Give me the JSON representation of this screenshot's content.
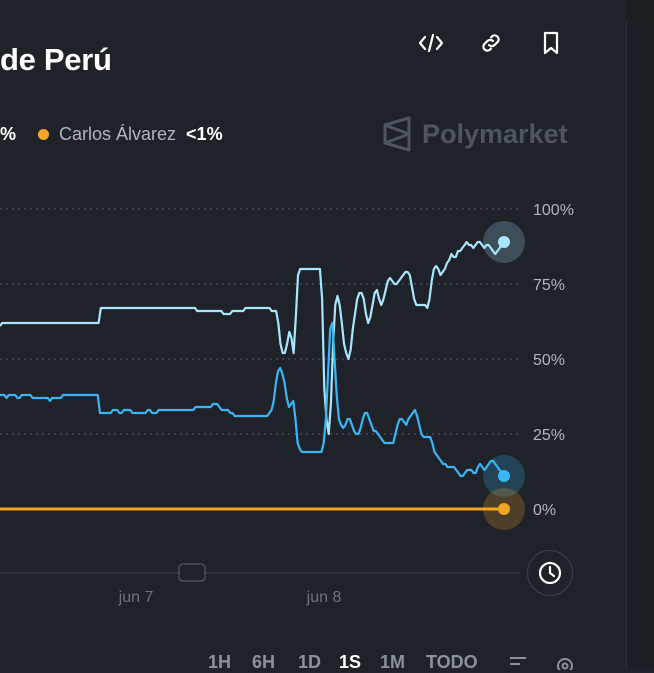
{
  "header": {
    "title": "de Perú"
  },
  "legend": [
    {
      "name": "",
      "pct": "%"
    },
    {
      "name": "Carlos Álvarez",
      "pct": "<1%",
      "color": "#f5a524"
    }
  ],
  "watermark": {
    "brand": "Polymarket"
  },
  "toolbar": {
    "embed_icon": "code-icon",
    "link_icon": "link-icon",
    "bookmark_icon": "bookmark-icon"
  },
  "range_tabs": [
    {
      "label": "1H",
      "active": false
    },
    {
      "label": "6H",
      "active": false
    },
    {
      "label": "1D",
      "active": false
    },
    {
      "label": "1S",
      "active": true
    },
    {
      "label": "1M",
      "active": false
    },
    {
      "label": "TODO",
      "active": false
    }
  ],
  "chart_data": {
    "type": "line",
    "y_ticks": [
      "100%",
      "75%",
      "50%",
      "25%",
      "0%"
    ],
    "ylim": [
      0,
      100
    ],
    "x_ticks": [
      "jun 7",
      "jun 8"
    ],
    "grid": true,
    "series": [
      {
        "color": "#a8e6ff",
        "end_value": 89,
        "values": [
          61,
          62,
          62,
          62,
          62,
          62,
          62,
          62,
          62,
          62,
          62,
          62,
          62,
          62,
          62,
          62,
          62,
          62,
          62,
          62,
          62,
          62,
          62,
          62,
          62,
          62,
          62,
          62,
          62,
          62,
          62,
          62,
          62,
          62,
          62,
          62,
          62,
          62,
          62,
          62,
          62,
          62,
          62,
          62,
          62,
          62,
          67,
          67,
          67,
          67,
          67,
          67,
          67,
          67,
          67,
          67,
          67,
          67,
          67,
          67,
          67,
          67,
          67,
          67,
          67,
          67,
          67,
          67,
          67,
          67,
          67,
          67,
          67,
          67,
          67,
          67,
          67,
          67,
          67,
          67,
          67,
          67,
          67,
          67,
          67,
          67,
          67,
          67,
          67,
          67,
          66,
          66,
          66,
          66,
          66,
          66,
          66,
          66,
          66,
          66,
          66,
          66,
          65,
          65,
          65,
          65,
          66,
          66,
          66,
          66,
          66,
          66,
          67,
          67,
          67,
          67,
          67,
          67,
          67,
          67,
          67,
          67,
          67,
          67,
          66,
          66,
          66,
          62,
          55,
          52,
          52,
          55,
          59,
          57,
          52,
          64,
          78,
          80,
          80,
          80,
          80,
          80,
          80,
          80,
          80,
          80,
          80,
          70,
          40,
          30,
          25,
          35,
          55,
          68,
          71,
          68,
          62,
          55,
          52,
          50,
          53,
          60,
          65,
          70,
          72,
          72,
          70,
          65,
          62,
          64,
          68,
          72,
          73,
          70,
          68,
          70,
          73,
          76,
          77,
          76,
          75,
          75,
          76,
          77,
          78,
          79,
          79,
          78,
          74,
          70,
          68,
          68,
          68,
          68,
          68,
          67,
          70,
          76,
          80,
          81,
          80,
          78,
          79,
          80,
          82,
          83,
          85,
          84,
          84,
          86,
          86,
          87,
          88,
          89,
          88,
          88,
          87,
          88,
          89,
          89,
          88,
          87,
          88,
          88,
          87,
          86,
          85,
          86,
          87,
          88,
          89
        ]
      },
      {
        "color": "#3bb5f5",
        "end_value": 11,
        "values": [
          38,
          38,
          38,
          37,
          38,
          38,
          38,
          38,
          37,
          37,
          38,
          38,
          38,
          38,
          38,
          37,
          37,
          37,
          37,
          37,
          37,
          37,
          37,
          36,
          37,
          37,
          37,
          37,
          37,
          38,
          38,
          38,
          38,
          38,
          38,
          38,
          38,
          38,
          38,
          38,
          38,
          38,
          38,
          38,
          38,
          38,
          32,
          32,
          32,
          32,
          32,
          32,
          33,
          33,
          33,
          32,
          32,
          33,
          33,
          33,
          33,
          32,
          32,
          32,
          32,
          32,
          32,
          32,
          33,
          33,
          32,
          32,
          32,
          33,
          33,
          33,
          33,
          33,
          33,
          33,
          33,
          33,
          33,
          33,
          33,
          33,
          33,
          33,
          33,
          33,
          34,
          34,
          34,
          34,
          34,
          34,
          34,
          34,
          35,
          35,
          35,
          34,
          33,
          33,
          33,
          33,
          32,
          32,
          31,
          31,
          31,
          31,
          31,
          31,
          31,
          31,
          31,
          31,
          31,
          31,
          31,
          31,
          31,
          31,
          32,
          33,
          36,
          42,
          46,
          47,
          45,
          42,
          37,
          34,
          35,
          36,
          30,
          22,
          20,
          19,
          19,
          19,
          19,
          19,
          19,
          19,
          19,
          19,
          19,
          22,
          30,
          45,
          60,
          62,
          50,
          38,
          30,
          28,
          27,
          28,
          30,
          30,
          28,
          26,
          25,
          25,
          27,
          30,
          32,
          32,
          30,
          28,
          26,
          26,
          25,
          24,
          23,
          22,
          22,
          22,
          22,
          22,
          25,
          28,
          30,
          30,
          29,
          28,
          30,
          31,
          32,
          33,
          31,
          28,
          25,
          24,
          24,
          24,
          24,
          22,
          19,
          18,
          17,
          16,
          15,
          15,
          14,
          14,
          14,
          14,
          13,
          12,
          11,
          11,
          12,
          13,
          13,
          13,
          12,
          12,
          14,
          15,
          14,
          13,
          14,
          15,
          16,
          16,
          15,
          14,
          13,
          12,
          11
        ]
      },
      {
        "name": "Carlos Álvarez",
        "color": "#f5a524",
        "end_value": 0,
        "values": [
          0,
          0,
          0,
          0,
          0,
          0,
          0,
          0,
          0,
          0,
          0,
          0,
          0,
          0,
          0,
          0,
          0,
          0,
          0,
          0,
          0,
          0,
          0,
          0,
          0,
          0,
          0,
          0,
          0,
          0,
          0,
          0,
          0,
          0,
          0,
          0,
          0,
          0,
          0,
          0,
          0,
          0,
          0,
          0,
          0,
          0,
          0,
          0,
          0,
          0,
          0,
          0,
          0,
          0,
          0,
          0,
          0,
          0,
          0,
          0,
          0,
          0,
          0,
          0,
          0,
          0,
          0,
          0,
          0,
          0,
          0,
          0,
          0,
          0,
          0,
          0,
          0,
          0,
          0,
          0,
          0,
          0,
          0,
          0,
          0,
          0,
          0,
          0,
          0,
          0,
          0,
          0,
          0,
          0,
          0,
          0,
          0,
          0,
          0,
          0,
          0,
          0,
          0,
          0,
          0,
          0,
          0,
          0,
          0,
          0,
          0,
          0,
          0,
          0,
          0,
          0,
          0,
          0,
          0,
          0,
          0,
          0,
          0,
          0,
          0,
          0,
          0,
          0,
          0,
          0,
          0,
          0,
          0,
          0,
          0,
          0,
          0,
          0,
          0,
          0,
          0,
          0,
          0,
          0,
          0,
          0,
          0,
          0,
          0,
          0,
          0,
          0,
          0,
          0,
          0,
          0,
          0,
          0,
          0,
          0,
          0,
          0,
          0,
          0,
          0,
          0,
          0,
          0,
          0,
          0,
          0,
          0,
          0,
          0,
          0,
          0,
          0,
          0,
          0,
          0,
          0,
          0,
          0,
          0,
          0,
          0,
          0,
          0,
          0,
          0,
          0,
          0,
          0,
          0,
          0,
          0,
          0,
          0,
          0,
          0,
          0,
          0,
          0,
          0,
          0,
          0,
          0,
          0,
          0,
          0,
          0,
          0,
          0,
          0,
          0,
          0,
          0,
          0,
          0,
          0,
          0,
          0,
          0,
          0,
          0,
          0,
          0,
          0,
          0,
          0,
          0,
          0,
          0,
          0,
          0,
          0,
          0,
          0
        ]
      }
    ]
  }
}
